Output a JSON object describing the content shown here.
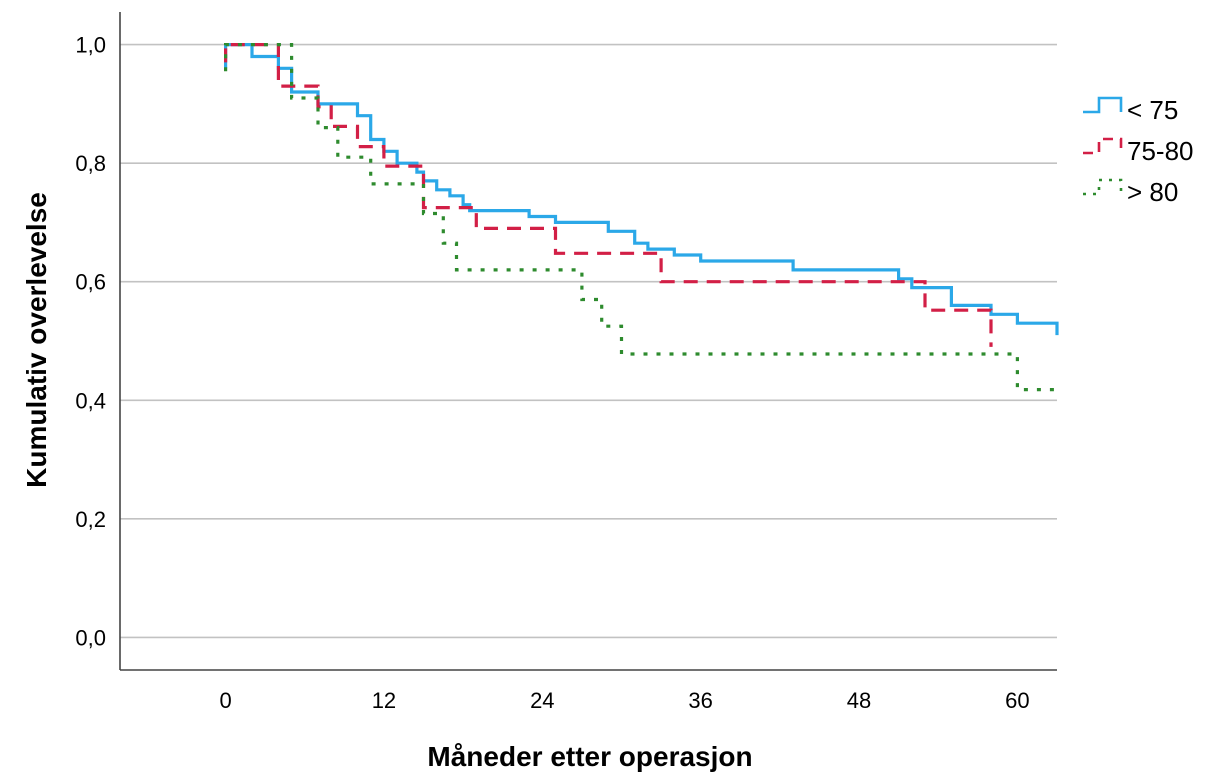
{
  "chart_data": {
    "type": "line",
    "title": "",
    "xlabel": "Måneder etter operasjon",
    "ylabel": "Kumulativ overlevelse",
    "xlim": [
      -8,
      63
    ],
    "ylim": [
      -0.055,
      1.055
    ],
    "x_ticks": [
      {
        "value": 0,
        "label": "0"
      },
      {
        "value": 12,
        "label": "12"
      },
      {
        "value": 24,
        "label": "24"
      },
      {
        "value": 36,
        "label": "36"
      },
      {
        "value": 48,
        "label": "48"
      },
      {
        "value": 60,
        "label": "60"
      }
    ],
    "y_ticks": [
      {
        "value": 0.0,
        "label": "0,0"
      },
      {
        "value": 0.2,
        "label": "0,2"
      },
      {
        "value": 0.4,
        "label": "0,4"
      },
      {
        "value": 0.6,
        "label": "0,6"
      },
      {
        "value": 0.8,
        "label": "0,8"
      },
      {
        "value": 1.0,
        "label": "1,0"
      }
    ],
    "grid": "horizontal",
    "legend_position": "top-right",
    "series": [
      {
        "name": "< 75",
        "color": "#2BA8E8",
        "style": "solid",
        "points": [
          [
            0,
            0.96
          ],
          [
            0,
            1.0
          ],
          [
            2,
            1.0
          ],
          [
            2,
            0.98
          ],
          [
            4,
            0.98
          ],
          [
            4,
            0.96
          ],
          [
            5,
            0.96
          ],
          [
            5,
            0.92
          ],
          [
            7,
            0.92
          ],
          [
            7,
            0.9
          ],
          [
            10,
            0.9
          ],
          [
            10,
            0.88
          ],
          [
            11,
            0.88
          ],
          [
            11,
            0.84
          ],
          [
            12,
            0.84
          ],
          [
            12,
            0.82
          ],
          [
            13,
            0.82
          ],
          [
            13,
            0.8
          ],
          [
            14.5,
            0.8
          ],
          [
            14.5,
            0.785
          ],
          [
            15,
            0.785
          ],
          [
            15,
            0.77
          ],
          [
            16,
            0.77
          ],
          [
            16,
            0.755
          ],
          [
            17,
            0.755
          ],
          [
            17,
            0.745
          ],
          [
            18,
            0.745
          ],
          [
            18,
            0.73
          ],
          [
            18.5,
            0.73
          ],
          [
            18.5,
            0.72
          ],
          [
            23,
            0.72
          ],
          [
            23,
            0.71
          ],
          [
            25,
            0.71
          ],
          [
            25,
            0.7
          ],
          [
            29,
            0.7
          ],
          [
            29,
            0.685
          ],
          [
            31,
            0.685
          ],
          [
            31,
            0.665
          ],
          [
            32,
            0.665
          ],
          [
            32,
            0.655
          ],
          [
            34,
            0.655
          ],
          [
            34,
            0.645
          ],
          [
            36,
            0.645
          ],
          [
            36,
            0.635
          ],
          [
            43,
            0.635
          ],
          [
            43,
            0.62
          ],
          [
            51,
            0.62
          ],
          [
            51,
            0.605
          ],
          [
            52,
            0.605
          ],
          [
            52,
            0.59
          ],
          [
            55,
            0.59
          ],
          [
            55,
            0.56
          ],
          [
            58,
            0.56
          ],
          [
            58,
            0.545
          ],
          [
            60,
            0.545
          ],
          [
            60,
            0.53
          ],
          [
            63,
            0.53
          ],
          [
            63,
            0.51
          ]
        ]
      },
      {
        "name": "75-80",
        "color": "#D21F46",
        "style": "dashed",
        "points": [
          [
            0,
            0.97
          ],
          [
            0,
            1.0
          ],
          [
            4,
            1.0
          ],
          [
            4,
            0.93
          ],
          [
            7,
            0.93
          ],
          [
            7,
            0.895
          ],
          [
            8,
            0.895
          ],
          [
            8,
            0.862
          ],
          [
            10,
            0.862
          ],
          [
            10,
            0.828
          ],
          [
            12,
            0.828
          ],
          [
            12,
            0.795
          ],
          [
            15,
            0.795
          ],
          [
            15,
            0.725
          ],
          [
            19,
            0.725
          ],
          [
            19,
            0.69
          ],
          [
            25,
            0.69
          ],
          [
            25,
            0.648
          ],
          [
            33,
            0.648
          ],
          [
            33,
            0.6
          ],
          [
            53,
            0.6
          ],
          [
            53,
            0.552
          ],
          [
            58,
            0.552
          ],
          [
            58,
            0.49
          ]
        ]
      },
      {
        "name": "> 80",
        "color": "#2E8B2E",
        "style": "dotted",
        "points": [
          [
            0,
            0.955
          ],
          [
            0,
            1.0
          ],
          [
            5,
            1.0
          ],
          [
            5,
            0.91
          ],
          [
            7,
            0.91
          ],
          [
            7,
            0.86
          ],
          [
            8.5,
            0.86
          ],
          [
            8.5,
            0.81
          ],
          [
            11,
            0.81
          ],
          [
            11,
            0.765
          ],
          [
            15,
            0.765
          ],
          [
            15,
            0.715
          ],
          [
            16.5,
            0.715
          ],
          [
            16.5,
            0.665
          ],
          [
            17.5,
            0.665
          ],
          [
            17.5,
            0.62
          ],
          [
            27,
            0.62
          ],
          [
            27,
            0.57
          ],
          [
            28.5,
            0.57
          ],
          [
            28.5,
            0.525
          ],
          [
            30,
            0.525
          ],
          [
            30,
            0.478
          ],
          [
            60,
            0.478
          ],
          [
            60,
            0.418
          ],
          [
            63,
            0.418
          ]
        ]
      }
    ]
  }
}
